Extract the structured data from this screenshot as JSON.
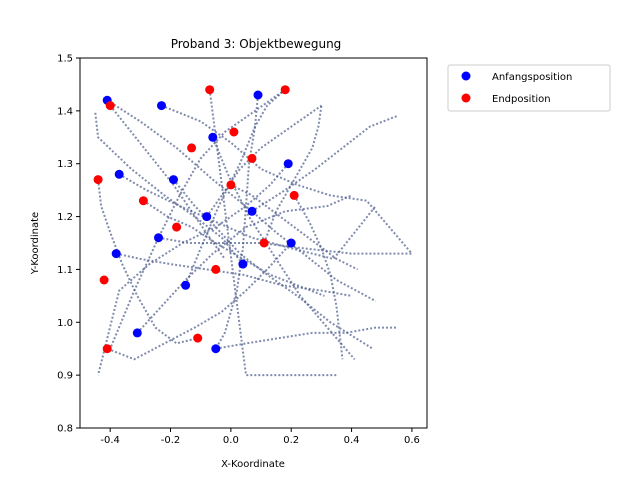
{
  "chart_data": {
    "type": "scatter",
    "title": "Proband 3: Objektbewegung",
    "xlabel": "X-Koordinate",
    "ylabel": "Y-Koordinate",
    "xlim": [
      -0.5,
      0.65
    ],
    "ylim": [
      0.8,
      1.5
    ],
    "xticks": [
      "-0.4",
      "-0.2",
      "0.0",
      "0.2",
      "0.4",
      "0.6"
    ],
    "yticks": [
      "0.8",
      "0.9",
      "1.0",
      "1.1",
      "1.2",
      "1.3",
      "1.4",
      "1.5"
    ],
    "grid": false,
    "legend_position": "outside-top-right",
    "colors": {
      "start": "#0000ff",
      "end": "#ff0000",
      "path": "#4a5a8a"
    },
    "series": [
      {
        "name": "Anfangsposition",
        "points": [
          [
            -0.41,
            1.42
          ],
          [
            -0.23,
            1.41
          ],
          [
            0.09,
            1.43
          ],
          [
            -0.06,
            1.35
          ],
          [
            0.19,
            1.3
          ],
          [
            -0.37,
            1.28
          ],
          [
            -0.19,
            1.27
          ],
          [
            0.07,
            1.21
          ],
          [
            -0.08,
            1.2
          ],
          [
            -0.24,
            1.16
          ],
          [
            -0.38,
            1.13
          ],
          [
            0.2,
            1.15
          ],
          [
            0.04,
            1.11
          ],
          [
            -0.15,
            1.07
          ],
          [
            -0.31,
            0.98
          ],
          [
            -0.05,
            0.95
          ]
        ]
      },
      {
        "name": "Endposition",
        "points": [
          [
            -0.4,
            1.41
          ],
          [
            -0.07,
            1.44
          ],
          [
            0.18,
            1.44
          ],
          [
            0.01,
            1.36
          ],
          [
            -0.13,
            1.33
          ],
          [
            0.07,
            1.31
          ],
          [
            -0.44,
            1.27
          ],
          [
            0.0,
            1.26
          ],
          [
            -0.29,
            1.23
          ],
          [
            0.21,
            1.24
          ],
          [
            -0.18,
            1.18
          ],
          [
            0.11,
            1.15
          ],
          [
            -0.05,
            1.1
          ],
          [
            -0.42,
            1.08
          ],
          [
            -0.11,
            0.97
          ],
          [
            -0.41,
            0.95
          ]
        ]
      }
    ],
    "paths": [
      [
        [
          -0.41,
          1.42
        ],
        [
          -0.3,
          1.38
        ],
        [
          -0.18,
          1.33
        ],
        [
          -0.06,
          1.27
        ],
        [
          0.07,
          1.21
        ],
        [
          0.15,
          1.17
        ],
        [
          0.24,
          1.13
        ],
        [
          0.35,
          1.08
        ],
        [
          0.48,
          1.04
        ]
      ],
      [
        [
          -0.23,
          1.41
        ],
        [
          -0.1,
          1.38
        ],
        [
          0.0,
          1.34
        ],
        [
          0.1,
          1.29
        ],
        [
          0.22,
          1.26
        ],
        [
          0.33,
          1.24
        ],
        [
          0.45,
          1.23
        ],
        [
          0.6,
          1.13
        ]
      ],
      [
        [
          0.09,
          1.43
        ],
        [
          0.08,
          1.37
        ],
        [
          0.06,
          1.3
        ],
        [
          0.05,
          1.22
        ],
        [
          0.04,
          1.14
        ],
        [
          0.02,
          1.06
        ],
        [
          -0.02,
          0.98
        ],
        [
          -0.05,
          0.95
        ]
      ],
      [
        [
          -0.06,
          1.35
        ],
        [
          -0.01,
          1.28
        ],
        [
          0.06,
          1.2
        ],
        [
          0.15,
          1.12
        ],
        [
          0.23,
          1.05
        ],
        [
          0.32,
          0.99
        ],
        [
          0.41,
          0.93
        ]
      ],
      [
        [
          0.19,
          1.3
        ],
        [
          0.13,
          1.26
        ],
        [
          0.05,
          1.22
        ],
        [
          -0.05,
          1.18
        ],
        [
          -0.16,
          1.15
        ],
        [
          -0.27,
          1.11
        ],
        [
          -0.37,
          1.06
        ],
        [
          -0.44,
          0.9
        ]
      ],
      [
        [
          -0.37,
          1.28
        ],
        [
          -0.28,
          1.25
        ],
        [
          -0.17,
          1.22
        ],
        [
          -0.05,
          1.19
        ],
        [
          0.07,
          1.16
        ],
        [
          0.2,
          1.14
        ],
        [
          0.34,
          1.12
        ],
        [
          0.48,
          1.22
        ]
      ],
      [
        [
          -0.19,
          1.27
        ],
        [
          -0.12,
          1.22
        ],
        [
          -0.05,
          1.18
        ],
        [
          0.03,
          1.13
        ],
        [
          0.12,
          1.09
        ],
        [
          0.22,
          1.05
        ],
        [
          0.33,
          1.0
        ],
        [
          0.47,
          0.95
        ]
      ],
      [
        [
          0.07,
          1.21
        ],
        [
          0.18,
          1.25
        ],
        [
          0.28,
          1.29
        ],
        [
          0.37,
          1.33
        ],
        [
          0.46,
          1.37
        ],
        [
          0.55,
          1.39
        ]
      ],
      [
        [
          -0.08,
          1.2
        ],
        [
          -0.03,
          1.24
        ],
        [
          0.03,
          1.29
        ],
        [
          0.1,
          1.33
        ],
        [
          0.2,
          1.37
        ],
        [
          0.3,
          1.41
        ]
      ],
      [
        [
          -0.24,
          1.16
        ],
        [
          -0.14,
          1.15
        ],
        [
          -0.02,
          1.15
        ],
        [
          0.1,
          1.15
        ],
        [
          0.24,
          1.14
        ],
        [
          0.4,
          1.13
        ],
        [
          0.6,
          1.13
        ]
      ],
      [
        [
          -0.38,
          1.13
        ],
        [
          -0.3,
          1.12
        ],
        [
          -0.2,
          1.11
        ],
        [
          -0.08,
          1.1
        ],
        [
          0.04,
          1.09
        ],
        [
          0.17,
          1.07
        ],
        [
          0.3,
          1.06
        ],
        [
          0.4,
          1.05
        ]
      ],
      [
        [
          0.2,
          1.15
        ],
        [
          0.12,
          1.1
        ],
        [
          0.05,
          1.06
        ],
        [
          -0.03,
          1.02
        ],
        [
          -0.12,
          0.99
        ],
        [
          -0.22,
          0.96
        ],
        [
          -0.32,
          0.93
        ],
        [
          -0.41,
          0.95
        ]
      ],
      [
        [
          0.04,
          1.11
        ],
        [
          -0.03,
          1.16
        ],
        [
          -0.12,
          1.2
        ],
        [
          -0.22,
          1.24
        ],
        [
          -0.33,
          1.29
        ],
        [
          -0.44,
          1.35
        ],
        [
          -0.45,
          1.4
        ]
      ],
      [
        [
          -0.15,
          1.07
        ],
        [
          -0.1,
          1.14
        ],
        [
          -0.04,
          1.22
        ],
        [
          0.03,
          1.3
        ],
        [
          0.08,
          1.37
        ],
        [
          0.12,
          1.41
        ],
        [
          0.18,
          1.44
        ]
      ],
      [
        [
          -0.31,
          0.98
        ],
        [
          -0.23,
          1.03
        ],
        [
          -0.15,
          1.08
        ],
        [
          -0.06,
          1.13
        ],
        [
          0.05,
          1.18
        ],
        [
          0.18,
          1.21
        ],
        [
          0.32,
          1.22
        ],
        [
          0.4,
          1.24
        ]
      ],
      [
        [
          -0.05,
          0.95
        ],
        [
          0.05,
          0.96
        ],
        [
          0.16,
          0.97
        ],
        [
          0.27,
          0.98
        ],
        [
          0.38,
          0.98
        ],
        [
          0.48,
          0.99
        ],
        [
          0.55,
          0.99
        ]
      ],
      [
        [
          -0.4,
          1.41
        ],
        [
          -0.33,
          1.36
        ],
        [
          -0.26,
          1.31
        ],
        [
          -0.19,
          1.26
        ],
        [
          -0.13,
          1.21
        ],
        [
          -0.07,
          1.16
        ],
        [
          -0.02,
          1.12
        ]
      ],
      [
        [
          -0.07,
          1.44
        ],
        [
          -0.05,
          1.35
        ],
        [
          -0.03,
          1.26
        ],
        [
          -0.01,
          1.17
        ],
        [
          0.01,
          1.08
        ],
        [
          0.03,
          0.99
        ],
        [
          0.05,
          0.9
        ],
        [
          0.35,
          0.9
        ]
      ],
      [
        [
          0.18,
          1.44
        ],
        [
          0.08,
          1.4
        ],
        [
          -0.02,
          1.36
        ],
        [
          -0.1,
          1.31
        ],
        [
          -0.17,
          1.24
        ],
        [
          -0.24,
          1.16
        ],
        [
          -0.32,
          1.06
        ],
        [
          -0.4,
          0.95
        ]
      ],
      [
        [
          -0.44,
          1.27
        ],
        [
          -0.43,
          1.22
        ],
        [
          -0.4,
          1.17
        ],
        [
          -0.36,
          1.11
        ],
        [
          -0.31,
          1.05
        ],
        [
          -0.25,
          0.99
        ],
        [
          -0.18,
          0.96
        ],
        [
          -0.11,
          0.97
        ]
      ],
      [
        [
          0.21,
          1.24
        ],
        [
          0.26,
          1.19
        ],
        [
          0.3,
          1.14
        ],
        [
          0.33,
          1.09
        ],
        [
          0.35,
          1.03
        ],
        [
          0.36,
          0.98
        ],
        [
          0.37,
          0.93
        ]
      ],
      [
        [
          -0.29,
          1.23
        ],
        [
          -0.21,
          1.2
        ],
        [
          -0.13,
          1.18
        ],
        [
          -0.05,
          1.15
        ],
        [
          0.04,
          1.12
        ],
        [
          0.13,
          1.09
        ],
        [
          0.22,
          1.07
        ],
        [
          0.31,
          1.05
        ]
      ],
      [
        [
          0.11,
          1.15
        ],
        [
          0.15,
          1.21
        ],
        [
          0.2,
          1.26
        ],
        [
          0.24,
          1.3
        ],
        [
          0.27,
          1.33
        ],
        [
          0.29,
          1.37
        ],
        [
          0.3,
          1.41
        ]
      ],
      [
        [
          0.0,
          1.26
        ],
        [
          0.07,
          1.24
        ],
        [
          0.14,
          1.21
        ],
        [
          0.21,
          1.18
        ],
        [
          0.28,
          1.15
        ],
        [
          0.35,
          1.12
        ],
        [
          0.42,
          1.1
        ]
      ]
    ]
  }
}
